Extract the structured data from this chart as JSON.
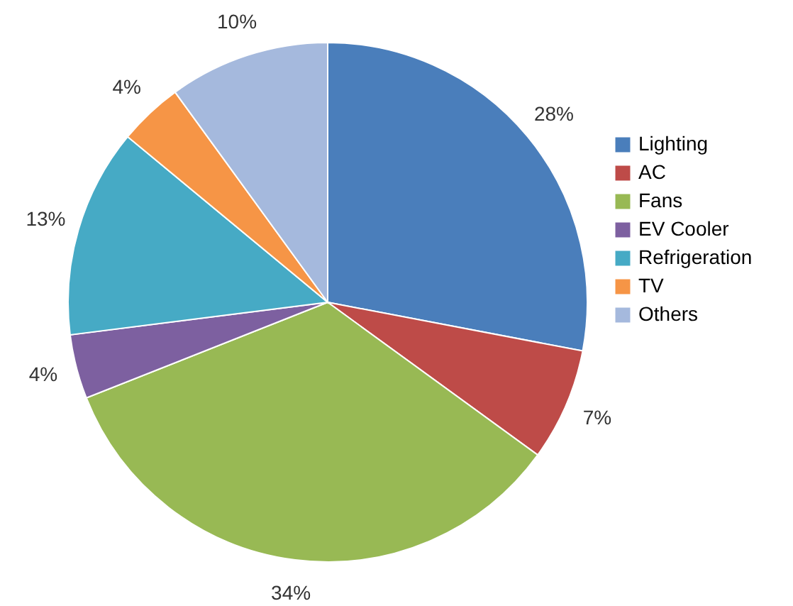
{
  "chart_data": {
    "type": "pie",
    "categories": [
      "Lighting",
      "AC",
      "Fans",
      "EV Cooler",
      "Refrigeration",
      "TV",
      "Others"
    ],
    "values": [
      28,
      7,
      34,
      4,
      13,
      4,
      10
    ],
    "value_labels": [
      "28%",
      "7%",
      "34%",
      "4%",
      "13%",
      "4%",
      "10%"
    ],
    "colors": [
      "#4a7ebb",
      "#be4b48",
      "#98b954",
      "#7d60a0",
      "#46aac5",
      "#f69546",
      "#a5b9dd"
    ],
    "legend": "right"
  }
}
